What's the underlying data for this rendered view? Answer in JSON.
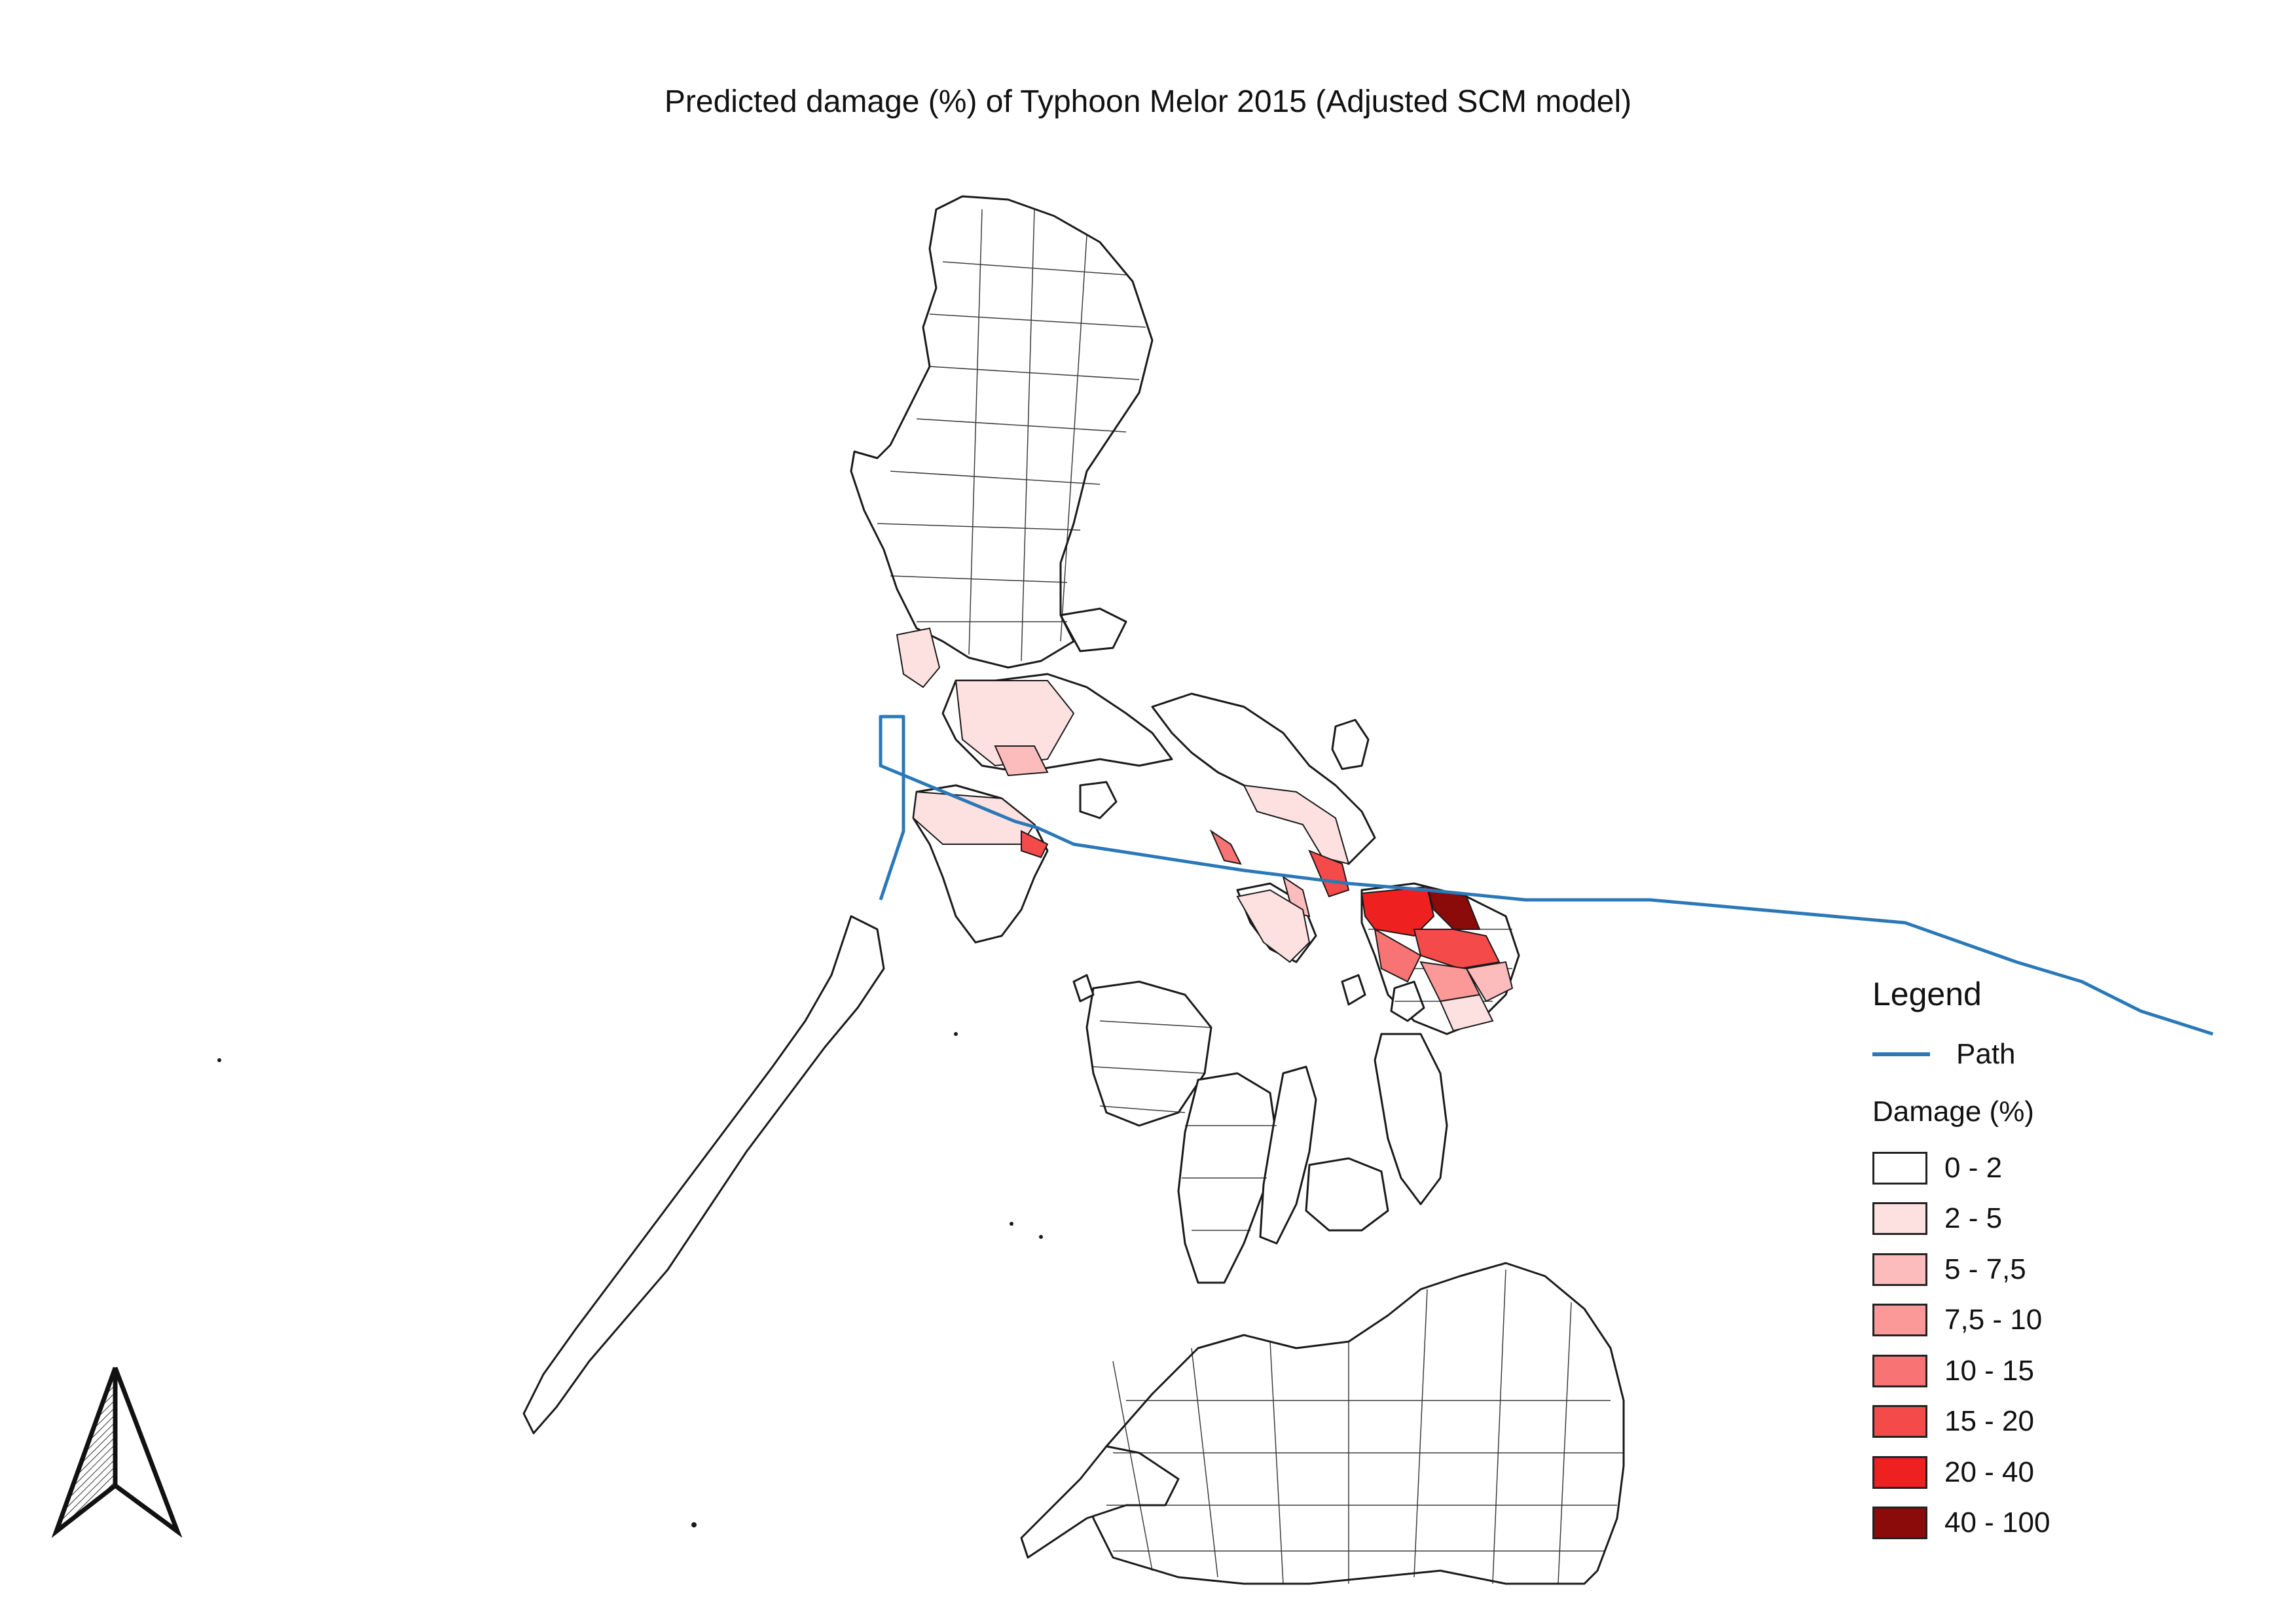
{
  "title": "Predicted damage (%) of Typhoon Melor 2015 (Adjusted SCM model)",
  "legend": {
    "title": "Legend",
    "path_label": "Path",
    "path_color": "#2a78b8",
    "damage_title": "Damage (%)",
    "classes": [
      {
        "label": "0 - 2",
        "color": "#ffffff"
      },
      {
        "label": "2 - 5",
        "color": "#fde0e0"
      },
      {
        "label": "5 - 7,5",
        "color": "#fcbcbc"
      },
      {
        "label": "7,5 - 10",
        "color": "#fb9898"
      },
      {
        "label": "10 - 15",
        "color": "#f87474"
      },
      {
        "label": "15 - 20",
        "color": "#f44a4a"
      },
      {
        "label": "20 - 40",
        "color": "#ee2020"
      },
      {
        "label": "40 - 100",
        "color": "#8b0a0a"
      }
    ]
  },
  "north_arrow_icon": "north-arrow-icon"
}
